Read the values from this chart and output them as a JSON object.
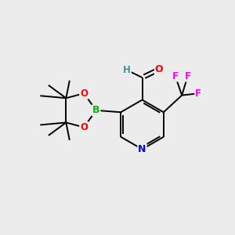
{
  "background_color": "#ececec",
  "bond_color": "#000000",
  "atom_colors": {
    "N": "#0000ff",
    "O": "#ff0000",
    "B": "#00bb00",
    "F": "#ff00ff",
    "C": "#000000",
    "H": "#4a9090"
  },
  "figsize": [
    3.0,
    3.0
  ],
  "dpi": 100,
  "lw": 1.4,
  "fs": 8.5
}
